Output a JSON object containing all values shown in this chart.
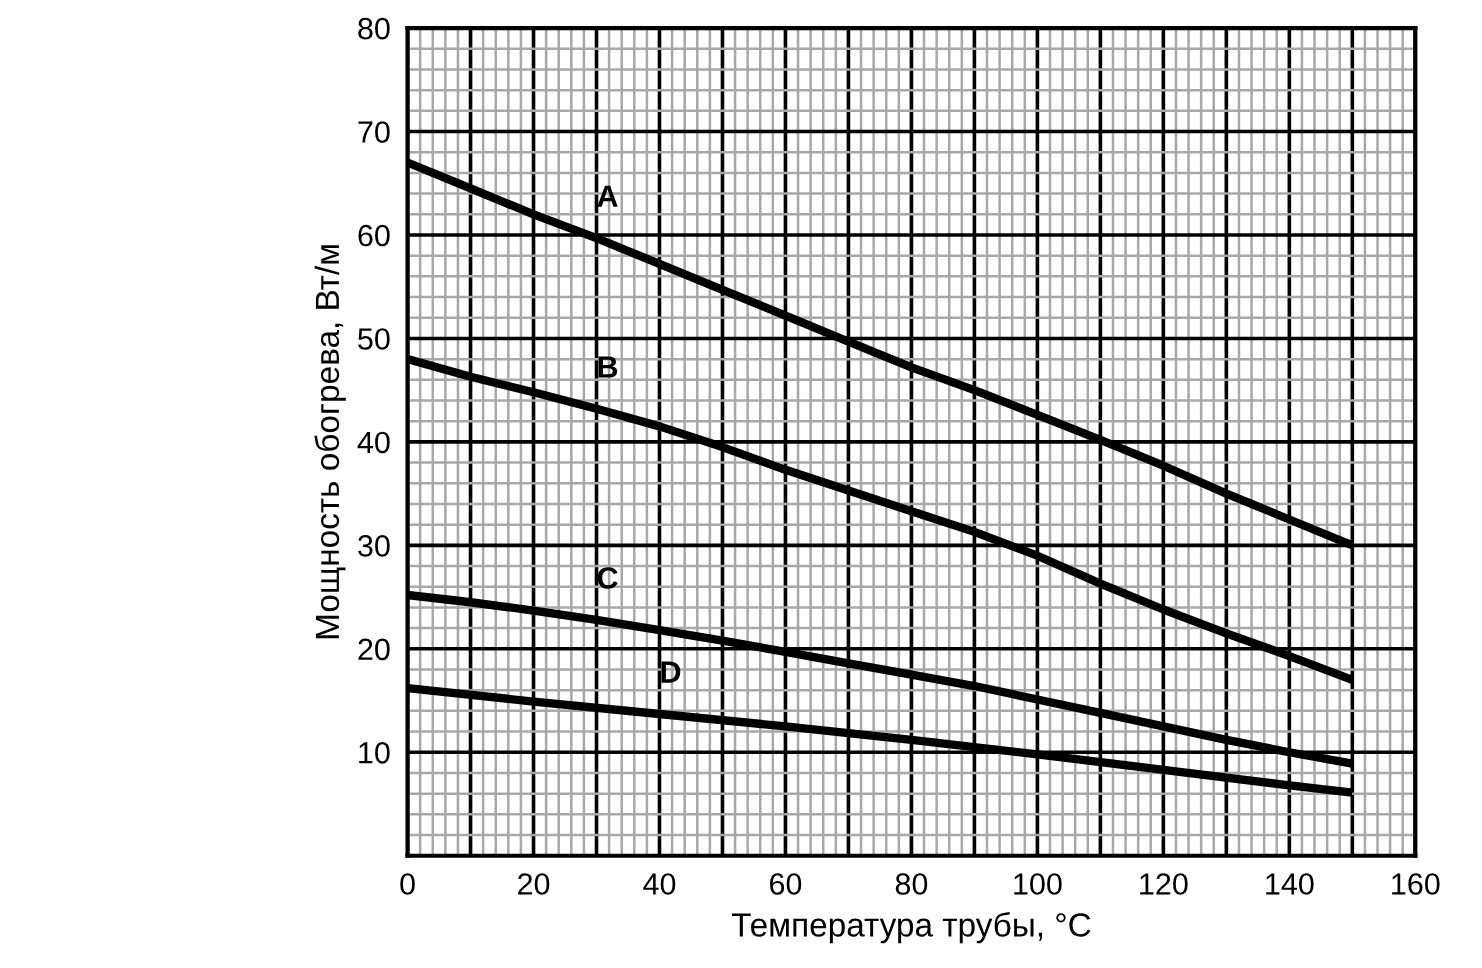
{
  "chart_data": {
    "type": "line",
    "xlabel": "Температура трубы, °C",
    "ylabel": "Мощность обогрева, Вт/м",
    "xlim": [
      0,
      160
    ],
    "ylim": [
      0,
      80
    ],
    "xticks": [
      0,
      {
        "value": 10,
        "label": null
      },
      20,
      {
        "value": 30,
        "label": null
      },
      40,
      {
        "value": 50,
        "label": null
      },
      60,
      {
        "value": 70,
        "label": null
      },
      80,
      {
        "value": 90,
        "label": null
      },
      100,
      {
        "value": 110,
        "label": null
      },
      120,
      {
        "value": 130,
        "label": null
      },
      140,
      {
        "value": 150,
        "label": null
      },
      160
    ],
    "yticks": [
      {
        "value": 0,
        "label": null
      },
      10,
      20,
      30,
      40,
      50,
      60,
      70,
      80
    ],
    "grid": true,
    "legend": false,
    "marker": "none",
    "line_style": "solid",
    "series": [
      {
        "name": "A",
        "color": "#000000",
        "x": [
          0,
          10,
          20,
          30,
          40,
          50,
          60,
          70,
          80,
          90,
          100,
          110,
          120,
          130,
          140,
          150
        ],
        "values": [
          67,
          64.5,
          62,
          59.7,
          57.2,
          54.7,
          52.2,
          49.7,
          47.2,
          45,
          42.6,
          40.2,
          37.7,
          35,
          32.5,
          30
        ]
      },
      {
        "name": "B",
        "color": "#000000",
        "x": [
          0,
          10,
          20,
          30,
          40,
          50,
          60,
          70,
          80,
          90,
          100,
          110,
          120,
          130,
          140,
          150
        ],
        "values": [
          48,
          46.3,
          44.8,
          43.2,
          41.5,
          39.5,
          37.3,
          35.3,
          33.3,
          31.3,
          29,
          26.3,
          23.8,
          21.5,
          19.3,
          17
        ]
      },
      {
        "name": "C",
        "color": "#000000",
        "x": [
          0,
          10,
          20,
          30,
          40,
          50,
          60,
          70,
          80,
          90,
          100,
          110,
          120,
          130,
          140,
          150
        ],
        "values": [
          25.2,
          24.5,
          23.7,
          22.8,
          21.8,
          20.8,
          19.7,
          18.6,
          17.5,
          16.4,
          15.1,
          13.8,
          12.5,
          11.2,
          10,
          8.9
        ]
      },
      {
        "name": "D",
        "color": "#000000",
        "x": [
          0,
          20,
          40,
          60,
          80,
          100,
          120,
          140,
          150
        ],
        "values": [
          16.2,
          14.9,
          13.7,
          12.5,
          11.2,
          9.8,
          8.3,
          6.8,
          6.1
        ]
      }
    ]
  }
}
